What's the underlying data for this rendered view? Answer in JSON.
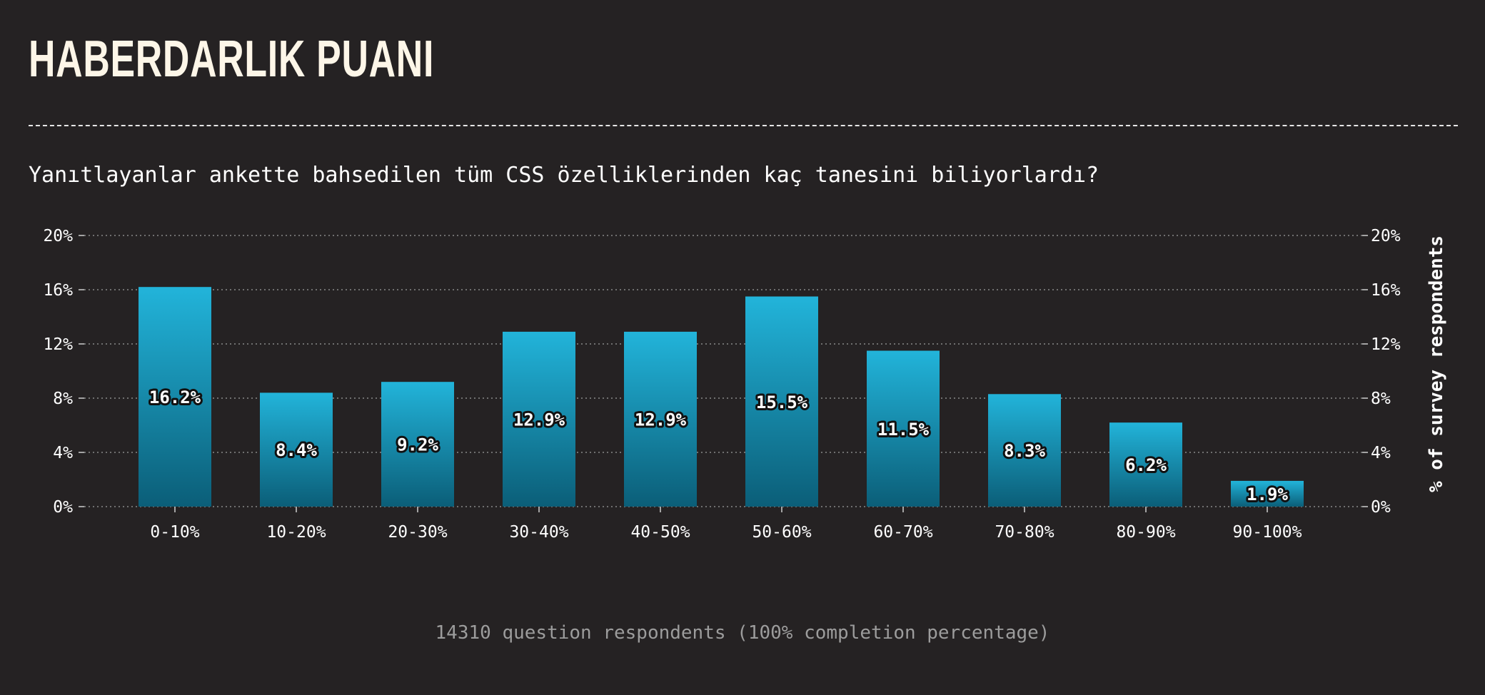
{
  "header": {
    "title": "HABERDARLIK PUANI",
    "question": "Yanıtlayanlar ankette bahsedilen tüm CSS özelliklerinden kaç tanesini biliyorlardı?"
  },
  "footer": {
    "note": "14310 question respondents (100% completion percentage)"
  },
  "colors": {
    "background": "#252223",
    "bar_top": "#22b4da",
    "bar_bottom": "#0b5e78",
    "grid": "#8a8a8a",
    "title": "#fdf6e8"
  },
  "chart_data": {
    "type": "bar",
    "title": "",
    "xlabel": "",
    "ylabel": "% of survey respondents",
    "ylim": [
      0,
      20
    ],
    "yticks": [
      "0%",
      "4%",
      "8%",
      "12%",
      "16%",
      "20%"
    ],
    "ytick_values": [
      0,
      4,
      8,
      12,
      16,
      20
    ],
    "grid": true,
    "categories": [
      "0-10%",
      "10-20%",
      "20-30%",
      "30-40%",
      "40-50%",
      "50-60%",
      "60-70%",
      "70-80%",
      "80-90%",
      "90-100%"
    ],
    "values": [
      16.2,
      8.4,
      9.2,
      12.9,
      12.9,
      15.5,
      11.5,
      8.3,
      6.2,
      1.9
    ],
    "value_labels": [
      "16.2%",
      "8.4%",
      "9.2%",
      "12.9%",
      "12.9%",
      "15.5%",
      "11.5%",
      "8.3%",
      "6.2%",
      "1.9%"
    ]
  }
}
